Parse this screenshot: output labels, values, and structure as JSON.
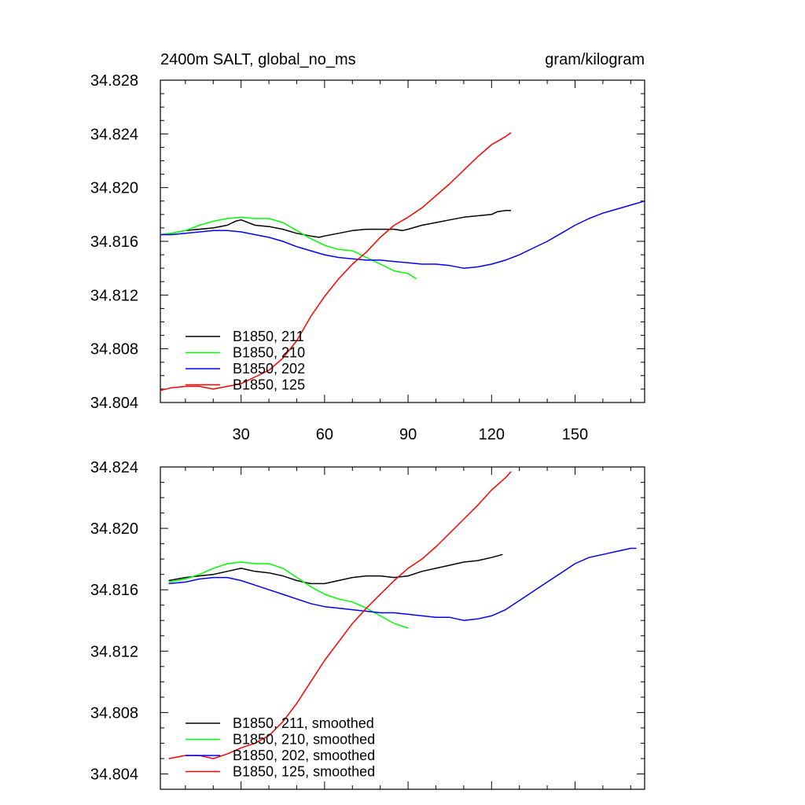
{
  "chart_data": [
    {
      "type": "line",
      "title": "2400m SALT, global_no_ms",
      "units": "gram/kilogram",
      "xlabel": "",
      "ylabel": "",
      "xlim": [
        1,
        175
      ],
      "ylim": [
        34.804,
        34.828
      ],
      "yticks": [
        "34.804",
        "34.808",
        "34.812",
        "34.816",
        "34.820",
        "34.824",
        "34.828"
      ],
      "xticks": [
        "30",
        "60",
        "90",
        "120",
        "150"
      ],
      "legend_position": "bottom-left",
      "series": [
        {
          "name": "B1850, 211",
          "color": "#000000",
          "x": [
            1,
            5,
            10,
            15,
            20,
            25,
            28,
            30,
            35,
            40,
            45,
            50,
            55,
            58,
            60,
            65,
            70,
            75,
            80,
            85,
            88,
            90,
            95,
            100,
            105,
            110,
            115,
            120,
            122,
            125,
            127
          ],
          "y": [
            34.8165,
            34.8166,
            34.8168,
            34.8169,
            34.817,
            34.8172,
            34.8175,
            34.8176,
            34.8172,
            34.8171,
            34.8169,
            34.8166,
            34.8164,
            34.8163,
            34.8164,
            34.8166,
            34.8168,
            34.8169,
            34.8169,
            34.8169,
            34.8168,
            34.8169,
            34.8172,
            34.8174,
            34.8176,
            34.8178,
            34.8179,
            34.818,
            34.8182,
            34.8183,
            34.8183
          ]
        },
        {
          "name": "B1850, 210",
          "color": "#00ff00",
          "x": [
            1,
            5,
            10,
            15,
            20,
            25,
            30,
            35,
            40,
            45,
            50,
            55,
            60,
            65,
            70,
            75,
            80,
            85,
            90,
            93
          ],
          "y": [
            34.8165,
            34.8166,
            34.8168,
            34.8172,
            34.8175,
            34.8177,
            34.8178,
            34.8177,
            34.8177,
            34.8174,
            34.8168,
            34.8162,
            34.8157,
            34.8154,
            34.8153,
            34.8148,
            34.8143,
            34.8138,
            34.8136,
            34.8132
          ]
        },
        {
          "name": "B1850, 202",
          "color": "#0000ff",
          "x": [
            1,
            5,
            10,
            15,
            20,
            25,
            30,
            35,
            40,
            45,
            50,
            55,
            60,
            65,
            70,
            75,
            80,
            85,
            90,
            95,
            100,
            105,
            110,
            115,
            120,
            125,
            130,
            135,
            140,
            145,
            150,
            155,
            160,
            165,
            170,
            175
          ],
          "y": [
            34.8165,
            34.8165,
            34.8166,
            34.8167,
            34.8168,
            34.8168,
            34.8167,
            34.8165,
            34.8163,
            34.816,
            34.8156,
            34.8153,
            34.815,
            34.8148,
            34.8147,
            34.8146,
            34.8146,
            34.8145,
            34.8144,
            34.8143,
            34.8143,
            34.8142,
            34.814,
            34.8141,
            34.8143,
            34.8146,
            34.815,
            34.8155,
            34.816,
            34.8166,
            34.8172,
            34.8177,
            34.8181,
            34.8184,
            34.8187,
            34.819
          ]
        },
        {
          "name": "B1850, 125",
          "color": "#ff0000",
          "x": [
            1,
            5,
            10,
            15,
            20,
            25,
            30,
            35,
            40,
            45,
            50,
            55,
            60,
            65,
            70,
            75,
            80,
            85,
            90,
            95,
            100,
            105,
            110,
            115,
            120,
            125,
            127
          ],
          "y": [
            34.8049,
            34.8051,
            34.8052,
            34.8052,
            34.805,
            34.8052,
            34.8054,
            34.8059,
            34.8064,
            34.8073,
            34.8086,
            34.8104,
            34.8119,
            34.8132,
            34.8143,
            34.8152,
            34.8163,
            34.8172,
            34.8178,
            34.8185,
            34.8194,
            34.8203,
            34.8213,
            34.8223,
            34.8232,
            34.8238,
            34.8241
          ]
        }
      ]
    },
    {
      "type": "line",
      "title": "",
      "xlabel": "",
      "ylabel": "",
      "xlim": [
        1,
        175
      ],
      "ylim": [
        34.803,
        34.824
      ],
      "yticks": [
        "34.804",
        "34.808",
        "34.812",
        "34.816",
        "34.820",
        "34.824"
      ],
      "legend_position": "bottom-left",
      "series": [
        {
          "name": "B1850, 211, smoothed",
          "color": "#000000",
          "x": [
            4,
            10,
            15,
            20,
            25,
            30,
            35,
            40,
            45,
            50,
            55,
            60,
            65,
            70,
            75,
            80,
            85,
            90,
            95,
            100,
            105,
            110,
            115,
            120,
            124
          ],
          "y": [
            34.8166,
            34.8168,
            34.8169,
            34.817,
            34.8172,
            34.8174,
            34.8172,
            34.8171,
            34.8169,
            34.8166,
            34.8164,
            34.8164,
            34.8166,
            34.8168,
            34.8169,
            34.8169,
            34.8168,
            34.8169,
            34.8172,
            34.8174,
            34.8176,
            34.8178,
            34.8179,
            34.8181,
            34.8183
          ]
        },
        {
          "name": "B1850, 210, smoothed",
          "color": "#00ff00",
          "x": [
            4,
            10,
            15,
            20,
            25,
            30,
            35,
            40,
            45,
            50,
            55,
            60,
            65,
            70,
            75,
            80,
            85,
            90
          ],
          "y": [
            34.8165,
            34.8167,
            34.817,
            34.8174,
            34.8177,
            34.8178,
            34.8177,
            34.8177,
            34.8174,
            34.8168,
            34.8162,
            34.8157,
            34.8154,
            34.8152,
            34.8148,
            34.8143,
            34.8138,
            34.8135
          ]
        },
        {
          "name": "B1850, 202, smoothed",
          "color": "#0000ff",
          "x": [
            4,
            10,
            15,
            20,
            25,
            30,
            35,
            40,
            45,
            50,
            55,
            60,
            65,
            70,
            75,
            80,
            85,
            90,
            95,
            100,
            105,
            110,
            115,
            120,
            125,
            130,
            135,
            140,
            145,
            150,
            155,
            160,
            165,
            170,
            172
          ],
          "y": [
            34.8164,
            34.8165,
            34.8167,
            34.8168,
            34.8168,
            34.8166,
            34.8163,
            34.816,
            34.8157,
            34.8154,
            34.8151,
            34.8149,
            34.8148,
            34.8147,
            34.8146,
            34.8145,
            34.8145,
            34.8144,
            34.8143,
            34.8142,
            34.8142,
            34.814,
            34.8141,
            34.8143,
            34.8147,
            34.8153,
            34.8159,
            34.8165,
            34.8171,
            34.8177,
            34.8181,
            34.8183,
            34.8185,
            34.8187,
            34.8187
          ]
        },
        {
          "name": "B1850, 125, smoothed",
          "color": "#ff0000",
          "x": [
            4,
            10,
            15,
            20,
            25,
            30,
            35,
            40,
            45,
            50,
            55,
            60,
            65,
            70,
            75,
            80,
            85,
            90,
            95,
            100,
            105,
            110,
            115,
            120,
            125,
            127
          ],
          "y": [
            34.805,
            34.8052,
            34.8052,
            34.805,
            34.8053,
            34.8057,
            34.806,
            34.8065,
            34.8074,
            34.8086,
            34.81,
            34.8114,
            34.8126,
            34.8138,
            34.8148,
            34.8157,
            34.8166,
            34.8174,
            34.818,
            34.8188,
            34.8197,
            34.8206,
            34.8215,
            34.8225,
            34.8233,
            34.8237
          ]
        }
      ]
    }
  ]
}
